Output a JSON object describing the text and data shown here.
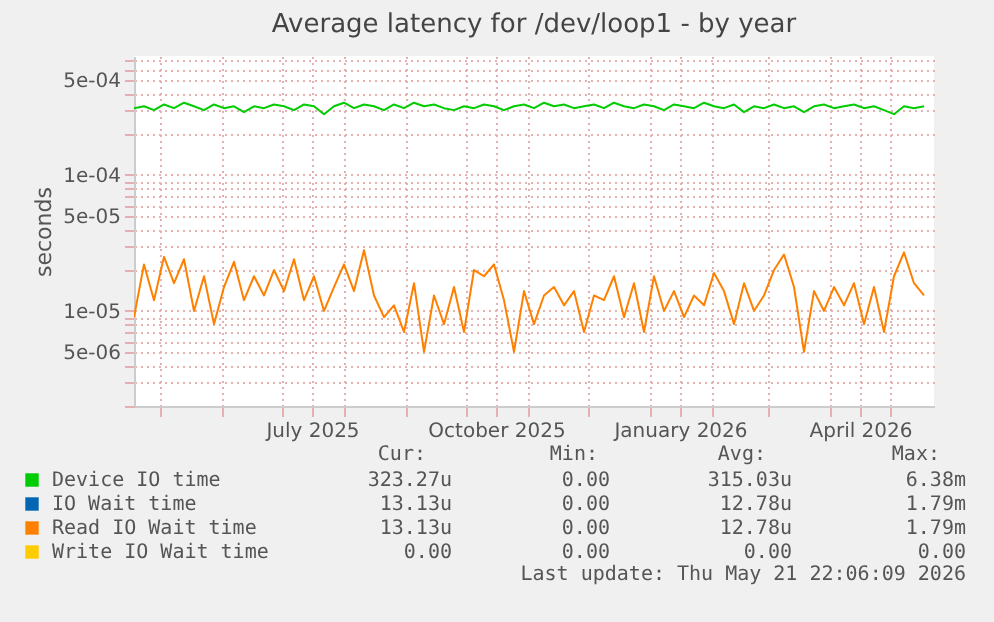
{
  "chart_data": {
    "type": "line",
    "title": "Average latency for /dev/loop1 - by year",
    "ylabel": "seconds",
    "log": "y",
    "grid": true,
    "legend": "bottom",
    "marker": "none",
    "x": [
      "2025-04-18",
      "2025-04-23",
      "2025-04-28",
      "2025-05-03",
      "2025-05-08",
      "2025-05-13",
      "2025-05-18",
      "2025-05-23",
      "2025-05-28",
      "2025-06-02",
      "2025-06-07",
      "2025-06-12",
      "2025-06-17",
      "2025-06-22",
      "2025-06-27",
      "2025-07-02",
      "2025-07-07",
      "2025-07-12",
      "2025-07-17",
      "2025-07-22",
      "2025-07-27",
      "2025-08-01",
      "2025-08-06",
      "2025-08-11",
      "2025-08-16",
      "2025-08-21",
      "2025-08-26",
      "2025-08-31",
      "2025-09-05",
      "2025-09-10",
      "2025-09-15",
      "2025-09-20",
      "2025-09-25",
      "2025-09-30",
      "2025-10-05",
      "2025-10-10",
      "2025-10-15",
      "2025-10-20",
      "2025-10-25",
      "2025-10-30",
      "2025-11-04",
      "2025-11-09",
      "2025-11-14",
      "2025-11-19",
      "2025-11-24",
      "2025-11-29",
      "2025-12-04",
      "2025-12-09",
      "2025-12-14",
      "2025-12-19",
      "2025-12-24",
      "2025-12-29",
      "2026-01-03",
      "2026-01-08",
      "2026-01-13",
      "2026-01-18",
      "2026-01-23",
      "2026-01-28",
      "2026-02-02",
      "2026-02-07",
      "2026-02-12",
      "2026-02-17",
      "2026-02-22",
      "2026-02-27",
      "2026-03-04",
      "2026-03-09",
      "2026-03-14",
      "2026-03-19",
      "2026-03-24",
      "2026-03-29",
      "2026-04-03",
      "2026-04-08",
      "2026-04-13",
      "2026-04-18",
      "2026-04-23",
      "2026-04-28",
      "2026-05-03",
      "2026-05-08",
      "2026-05-13",
      "2026-05-18"
    ],
    "series": [
      {
        "name": "Device IO time",
        "color": "#00cc00",
        "values": [
          0.00031,
          0.00032,
          0.0003,
          0.00033,
          0.00031,
          0.00034,
          0.00032,
          0.0003,
          0.00033,
          0.00031,
          0.00032,
          0.00029,
          0.00032,
          0.00031,
          0.00033,
          0.00032,
          0.0003,
          0.00033,
          0.00032,
          0.00028,
          0.00032,
          0.00034,
          0.00031,
          0.00033,
          0.00032,
          0.0003,
          0.00033,
          0.00031,
          0.00034,
          0.00032,
          0.00033,
          0.00031,
          0.0003,
          0.00032,
          0.00031,
          0.00033,
          0.00032,
          0.0003,
          0.00032,
          0.00033,
          0.00031,
          0.00034,
          0.00032,
          0.00033,
          0.00031,
          0.00032,
          0.00033,
          0.00031,
          0.00034,
          0.00032,
          0.00031,
          0.00033,
          0.00032,
          0.0003,
          0.00033,
          0.00032,
          0.00031,
          0.00034,
          0.00032,
          0.00031,
          0.00033,
          0.00029,
          0.00032,
          0.00031,
          0.00033,
          0.00031,
          0.00032,
          0.00029,
          0.00032,
          0.00033,
          0.00031,
          0.00032,
          0.00033,
          0.00031,
          0.00032,
          0.0003,
          0.00028,
          0.00032,
          0.00031,
          0.00032
        ]
      },
      {
        "name": "IO Wait time",
        "color": "#0066b3",
        "values": [
          null,
          null,
          null,
          null,
          null,
          null,
          null,
          null,
          null,
          null,
          null,
          null,
          null,
          null,
          null,
          null,
          null,
          null,
          null,
          null,
          null,
          null,
          null,
          null,
          null,
          null,
          null,
          null,
          null,
          null,
          null,
          null,
          null,
          null,
          null,
          null,
          null,
          null,
          null,
          null,
          null,
          null,
          null,
          null,
          null,
          null,
          null,
          null,
          null,
          null,
          null,
          null,
          null,
          null,
          null,
          null,
          null,
          null,
          null,
          null,
          null,
          null,
          null,
          null,
          null,
          null,
          null,
          null,
          null,
          null,
          null,
          null,
          null,
          null,
          null,
          null,
          null,
          null,
          null,
          null
        ]
      },
      {
        "name": "Read IO Wait time",
        "color": "#ff8000",
        "values": [
          9e-06,
          2.2e-05,
          1.2e-05,
          2.5e-05,
          1.6e-05,
          2.4e-05,
          1e-05,
          1.8e-05,
          8e-06,
          1.5e-05,
          2.3e-05,
          1.2e-05,
          1.8e-05,
          1.3e-05,
          2e-05,
          1.4e-05,
          2.4e-05,
          1.2e-05,
          1.8e-05,
          1e-05,
          1.5e-05,
          2.2e-05,
          1.4e-05,
          2.8e-05,
          1.3e-05,
          9e-06,
          1.1e-05,
          7e-06,
          1.6e-05,
          5e-06,
          1.3e-05,
          8e-06,
          1.5e-05,
          7e-06,
          2e-05,
          1.8e-05,
          2.2e-05,
          1.2e-05,
          5e-06,
          1.4e-05,
          8e-06,
          1.3e-05,
          1.5e-05,
          1.1e-05,
          1.4e-05,
          7e-06,
          1.3e-05,
          1.2e-05,
          1.8e-05,
          9e-06,
          1.6e-05,
          7e-06,
          1.8e-05,
          1e-05,
          1.4e-05,
          9e-06,
          1.3e-05,
          1.1e-05,
          1.9e-05,
          1.4e-05,
          8e-06,
          1.6e-05,
          1e-05,
          1.3e-05,
          2e-05,
          2.6e-05,
          1.5e-05,
          5e-06,
          1.4e-05,
          1e-05,
          1.5e-05,
          1.1e-05,
          1.6e-05,
          8e-06,
          1.5e-05,
          7e-06,
          1.8e-05,
          2.7e-05,
          1.6e-05,
          1.3e-05
        ]
      },
      {
        "name": "Write IO Wait time",
        "color": "#ffcc00",
        "values": [
          null,
          null,
          null,
          null,
          null,
          null,
          null,
          null,
          null,
          null,
          null,
          null,
          null,
          null,
          null,
          null,
          null,
          null,
          null,
          null,
          null,
          null,
          null,
          null,
          null,
          null,
          null,
          null,
          null,
          null,
          null,
          null,
          null,
          null,
          null,
          null,
          null,
          null,
          null,
          null,
          null,
          null,
          null,
          null,
          null,
          null,
          null,
          null,
          null,
          null,
          null,
          null,
          null,
          null,
          null,
          null,
          null,
          null,
          null,
          null,
          null,
          null,
          null,
          null,
          null,
          null,
          null,
          null,
          null,
          null,
          null,
          null,
          null,
          null,
          null,
          null,
          null,
          null,
          null,
          null
        ]
      }
    ],
    "xlim": [
      "2025-04-18",
      "2026-05-23"
    ],
    "xticks": [
      {
        "value": "2025-05-01",
        "label": null
      },
      {
        "value": "2025-06-01",
        "label": null
      },
      {
        "value": "2025-07-01",
        "label": null
      },
      {
        "value": "2025-07-16",
        "label": "July 2025"
      },
      {
        "value": "2025-08-01",
        "label": null
      },
      {
        "value": "2025-09-01",
        "label": null
      },
      {
        "value": "2025-10-01",
        "label": null
      },
      {
        "value": "2025-10-16",
        "label": "October 2025"
      },
      {
        "value": "2025-11-01",
        "label": null
      },
      {
        "value": "2025-12-01",
        "label": null
      },
      {
        "value": "2026-01-01",
        "label": null
      },
      {
        "value": "2026-01-16",
        "label": "January 2026"
      },
      {
        "value": "2026-02-01",
        "label": null
      },
      {
        "value": "2026-03-01",
        "label": null
      },
      {
        "value": "2026-04-01",
        "label": null
      },
      {
        "value": "2026-04-16",
        "label": "April 2026"
      },
      {
        "value": "2026-05-01",
        "label": null
      }
    ],
    "ylim": [
      2e-06,
      0.00075
    ],
    "yticks": [
      {
        "value": 2e-06,
        "label": null
      },
      {
        "value": 3e-06,
        "label": null
      },
      {
        "value": 4e-06,
        "label": null
      },
      {
        "value": 5e-06,
        "label": "5e-06"
      },
      {
        "value": 6e-06,
        "label": null
      },
      {
        "value": 7e-06,
        "label": null
      },
      {
        "value": 8e-06,
        "label": null
      },
      {
        "value": 9e-06,
        "label": null
      },
      {
        "value": 1e-05,
        "label": "1e-05"
      },
      {
        "value": 2e-05,
        "label": null
      },
      {
        "value": 3e-05,
        "label": null
      },
      {
        "value": 4e-05,
        "label": null
      },
      {
        "value": 5e-05,
        "label": "5e-05"
      },
      {
        "value": 6e-05,
        "label": null
      },
      {
        "value": 7e-05,
        "label": null
      },
      {
        "value": 8e-05,
        "label": null
      },
      {
        "value": 9e-05,
        "label": null
      },
      {
        "value": 0.0001,
        "label": "1e-04"
      },
      {
        "value": 0.0002,
        "label": null
      },
      {
        "value": 0.0003,
        "label": null
      },
      {
        "value": 0.0004,
        "label": null
      },
      {
        "value": 0.0005,
        "label": "5e-04"
      },
      {
        "value": 0.0006,
        "label": null
      },
      {
        "value": 0.0007,
        "label": null
      }
    ],
    "annotations": [
      "Cur:",
      "Min:",
      "Avg:",
      "Max:",
      "323.27u",
      "0.00",
      "315.03u",
      "6.38m",
      "13.13u",
      "0.00",
      "12.78u",
      "1.79m",
      "13.13u",
      "0.00",
      "12.78u",
      "1.79m",
      "0.00",
      "0.00",
      "0.00",
      "0.00",
      "Last update: Thu May 21 22:06:09 2026"
    ]
  }
}
